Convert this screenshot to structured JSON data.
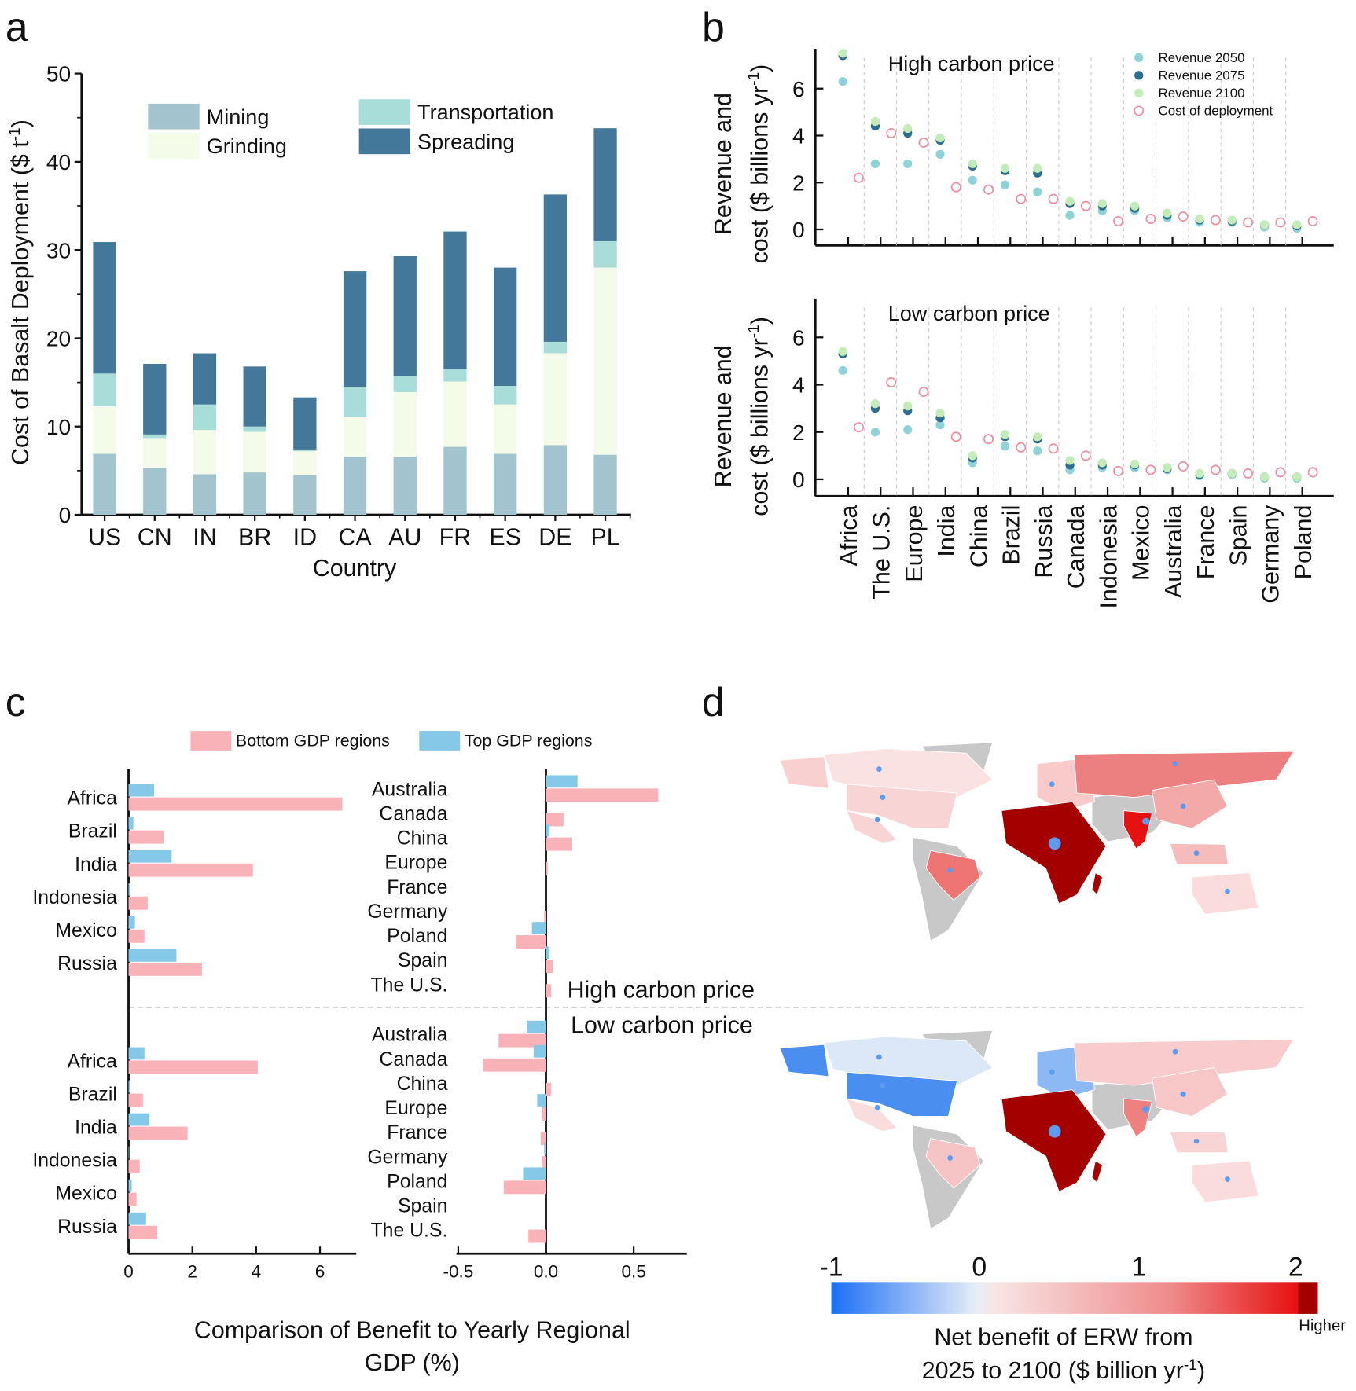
{
  "panels": {
    "a": "a",
    "b": "b",
    "c": "c",
    "d": "d"
  },
  "chart_data": [
    {
      "panel": "a",
      "type": "bar",
      "stacked": true,
      "xlabel": "Country",
      "ylabel": "Cost of Basalt Deployment ($ t-1)",
      "ylabel_main": "Cost of Basalt Deployment ($ t",
      "ylabel_sup": "-1",
      "ylabel_end": ")",
      "ylim": [
        0,
        50
      ],
      "yticks": [
        "0",
        "10",
        "20",
        "30",
        "40",
        "50"
      ],
      "categories": [
        "US",
        "CN",
        "IN",
        "BR",
        "ID",
        "CA",
        "AU",
        "FR",
        "ES",
        "DE",
        "PL"
      ],
      "legend_placement": "top",
      "series": [
        {
          "name": "Mining",
          "color": "#a3c4cf",
          "values": [
            6.9,
            5.3,
            4.6,
            4.8,
            4.5,
            6.6,
            6.6,
            7.7,
            6.9,
            7.9,
            6.8
          ]
        },
        {
          "name": "Grinding",
          "color": "#f4fbe9",
          "values": [
            5.4,
            3.4,
            5.0,
            4.6,
            2.7,
            4.5,
            7.3,
            7.4,
            5.6,
            10.4,
            21.2
          ]
        },
        {
          "name": "Transportation",
          "color": "#a8ddd9",
          "values": [
            3.7,
            0.4,
            2.9,
            0.6,
            0.2,
            3.4,
            1.8,
            1.4,
            2.1,
            1.3,
            3.0
          ]
        },
        {
          "name": "Spreading",
          "color": "#44789a",
          "values": [
            14.9,
            8.0,
            5.8,
            6.8,
            5.9,
            13.1,
            13.6,
            15.6,
            13.4,
            16.7,
            12.8
          ]
        }
      ]
    },
    {
      "panel": "b",
      "type": "scatter",
      "ylabel_line1": "Revenue and",
      "ylabel_line2": "cost ($ billions yr",
      "ylabel_sup": "-1",
      "ylabel_end": ")",
      "ylim": [
        0,
        7.5
      ],
      "yticks": [
        "0",
        "2",
        "4",
        "6"
      ],
      "grid": "vertical dashed",
      "legend_placement": "top-right",
      "categories": [
        "Africa",
        "The U.S.",
        "Europe",
        "India",
        "China",
        "Brazil",
        "Russia",
        "Canada",
        "Indonesia",
        "Mexico",
        "Australia",
        "France",
        "Spain",
        "Germany",
        "Poland"
      ],
      "legend": [
        {
          "name": "Revenue 2050",
          "color": "#8fd3d9",
          "style": "filled"
        },
        {
          "name": "Revenue 2075",
          "color": "#2c6e90",
          "style": "filled"
        },
        {
          "name": "Revenue 2100",
          "color": "#c4ecb8",
          "style": "filled"
        },
        {
          "name": "Cost of deployment",
          "color": "#f08ca0",
          "style": "open"
        }
      ],
      "subplots": [
        {
          "title": "High carbon price",
          "series": [
            {
              "name": "Revenue 2050",
              "values": [
                6.3,
                2.8,
                2.8,
                3.2,
                2.1,
                1.9,
                1.6,
                0.6,
                0.8,
                0.8,
                0.5,
                0.3,
                0.3,
                0.1,
                0.05
              ]
            },
            {
              "name": "Revenue 2075",
              "values": [
                7.4,
                4.4,
                4.1,
                3.8,
                2.7,
                2.5,
                2.4,
                1.1,
                1.0,
                0.9,
                0.6,
                0.4,
                0.35,
                0.2,
                0.15
              ]
            },
            {
              "name": "Revenue 2100",
              "values": [
                7.5,
                4.6,
                4.3,
                3.9,
                2.8,
                2.6,
                2.6,
                1.2,
                1.1,
                1.0,
                0.7,
                0.45,
                0.4,
                0.2,
                0.2
              ]
            },
            {
              "name": "Cost of deployment",
              "values": [
                2.2,
                4.1,
                3.7,
                1.8,
                1.7,
                1.3,
                1.3,
                1.0,
                0.35,
                0.45,
                0.55,
                0.4,
                0.3,
                0.3,
                0.35
              ]
            }
          ]
        },
        {
          "title": "Low carbon price",
          "series": [
            {
              "name": "Revenue 2050",
              "values": [
                4.6,
                2.0,
                2.1,
                2.3,
                0.7,
                1.4,
                1.2,
                0.4,
                0.5,
                0.5,
                0.4,
                0.15,
                0.2,
                0.05,
                0.05
              ]
            },
            {
              "name": "Revenue 2075",
              "values": [
                5.3,
                3.0,
                2.9,
                2.6,
                0.9,
                1.8,
                1.7,
                0.6,
                0.6,
                0.6,
                0.45,
                0.2,
                0.25,
                0.1,
                0.1
              ]
            },
            {
              "name": "Revenue 2100",
              "values": [
                5.4,
                3.2,
                3.1,
                2.8,
                1.0,
                1.9,
                1.8,
                0.8,
                0.7,
                0.65,
                0.5,
                0.25,
                0.25,
                0.1,
                0.1
              ]
            },
            {
              "name": "Cost of deployment",
              "values": [
                2.2,
                4.1,
                3.7,
                1.8,
                1.7,
                1.35,
                1.3,
                1.0,
                0.35,
                0.4,
                0.55,
                0.4,
                0.25,
                0.3,
                0.3
              ]
            }
          ]
        }
      ]
    },
    {
      "panel": "c",
      "type": "bar",
      "orientation": "horizontal",
      "xlabel_line1": "Comparison of Benefit to Yearly Regional",
      "xlabel_line2": "GDP (%)",
      "scenario_labels": [
        "High carbon price",
        "Low carbon price"
      ],
      "legend_placement": "top",
      "legend": [
        {
          "name": "Bottom GDP regions",
          "color": "#f9b3b8"
        },
        {
          "name": "Top GDP regions",
          "color": "#86c8e8"
        }
      ],
      "left": {
        "xlim": [
          0,
          7
        ],
        "xticks": [
          "0",
          "2",
          "4",
          "6"
        ],
        "categories": [
          "Africa",
          "Brazil",
          "India",
          "Indonesia",
          "Mexico",
          "Russia"
        ],
        "high": {
          "top": [
            0.8,
            0.15,
            1.35,
            0.05,
            0.2,
            1.5
          ],
          "bottom": [
            6.7,
            1.1,
            3.9,
            0.6,
            0.5,
            2.3
          ]
        },
        "low": {
          "top": [
            0.5,
            0.05,
            0.65,
            0.02,
            0.1,
            0.55
          ],
          "bottom": [
            4.05,
            0.45,
            1.85,
            0.35,
            0.25,
            0.9
          ]
        }
      },
      "right": {
        "xlim": [
          -0.5,
          0.8
        ],
        "xticks": [
          "-0.5",
          "0.0",
          "0.5"
        ],
        "categories": [
          "Australia",
          "Canada",
          "China",
          "Europe",
          "France",
          "Germany",
          "Poland",
          "Spain",
          "The U.S."
        ],
        "high": {
          "top": [
            0.18,
            0.0,
            0.02,
            0.0,
            0.0,
            0.0,
            -0.08,
            0.02,
            0.0
          ],
          "bottom": [
            0.64,
            0.1,
            0.15,
            0.01,
            0.0,
            -0.01,
            -0.17,
            0.04,
            0.03
          ]
        },
        "low": {
          "top": [
            -0.11,
            -0.07,
            0.0,
            -0.05,
            0.0,
            -0.01,
            -0.13,
            0.0,
            0.0
          ],
          "bottom": [
            -0.27,
            -0.36,
            0.03,
            -0.02,
            -0.03,
            -0.02,
            -0.24,
            0.0,
            -0.1
          ]
        }
      }
    },
    {
      "panel": "d",
      "type": "heatmap",
      "subtype": "choropleth-map",
      "colorbar": {
        "ticks": [
          "-1",
          "0",
          "1",
          "2"
        ],
        "range": [
          -1,
          2.1
        ],
        "high_label": "Higher",
        "colors": [
          "#1a6ff5",
          "#e8eef8",
          "#f8e4e4",
          "#ef8a8a",
          "#e61010",
          "#a50000"
        ],
        "title_line1": "Net benefit of ERW from",
        "title_line2": "2025 to 2100 ($ billion yr",
        "title_sup": "-1",
        "title_end": ")"
      },
      "marker_color": "#5b9cf0",
      "no_data_color": "#c8c8c8",
      "maps": [
        {
          "scenario": "High carbon price",
          "colors": {
            "canada": "#fbe2e2",
            "alaska": "#f9d0d0",
            "usa": "#f9d4d4",
            "mexico": "#f9d4d4",
            "brazil": "#ef7474",
            "europe": "#f8caca",
            "russia": "#ec7f7f",
            "africa": "#a50000",
            "india": "#e61212",
            "china": "#f4a9a9",
            "southeast_asia": "#f6bcbc",
            "australia": "#fadcdc"
          }
        },
        {
          "scenario": "Low carbon price",
          "colors": {
            "canada": "#dce8f8",
            "alaska": "#4a8ff0",
            "usa": "#4a8ff0",
            "mexico": "#f9dcdc",
            "brazil": "#f6c4c4",
            "europe": "#8cb8f4",
            "russia": "#f8cccc",
            "africa": "#a50000",
            "india": "#ef8080",
            "china": "#f7c6c6",
            "southeast_asia": "#f8d4d4",
            "australia": "#fadcdc"
          }
        }
      ]
    }
  ]
}
